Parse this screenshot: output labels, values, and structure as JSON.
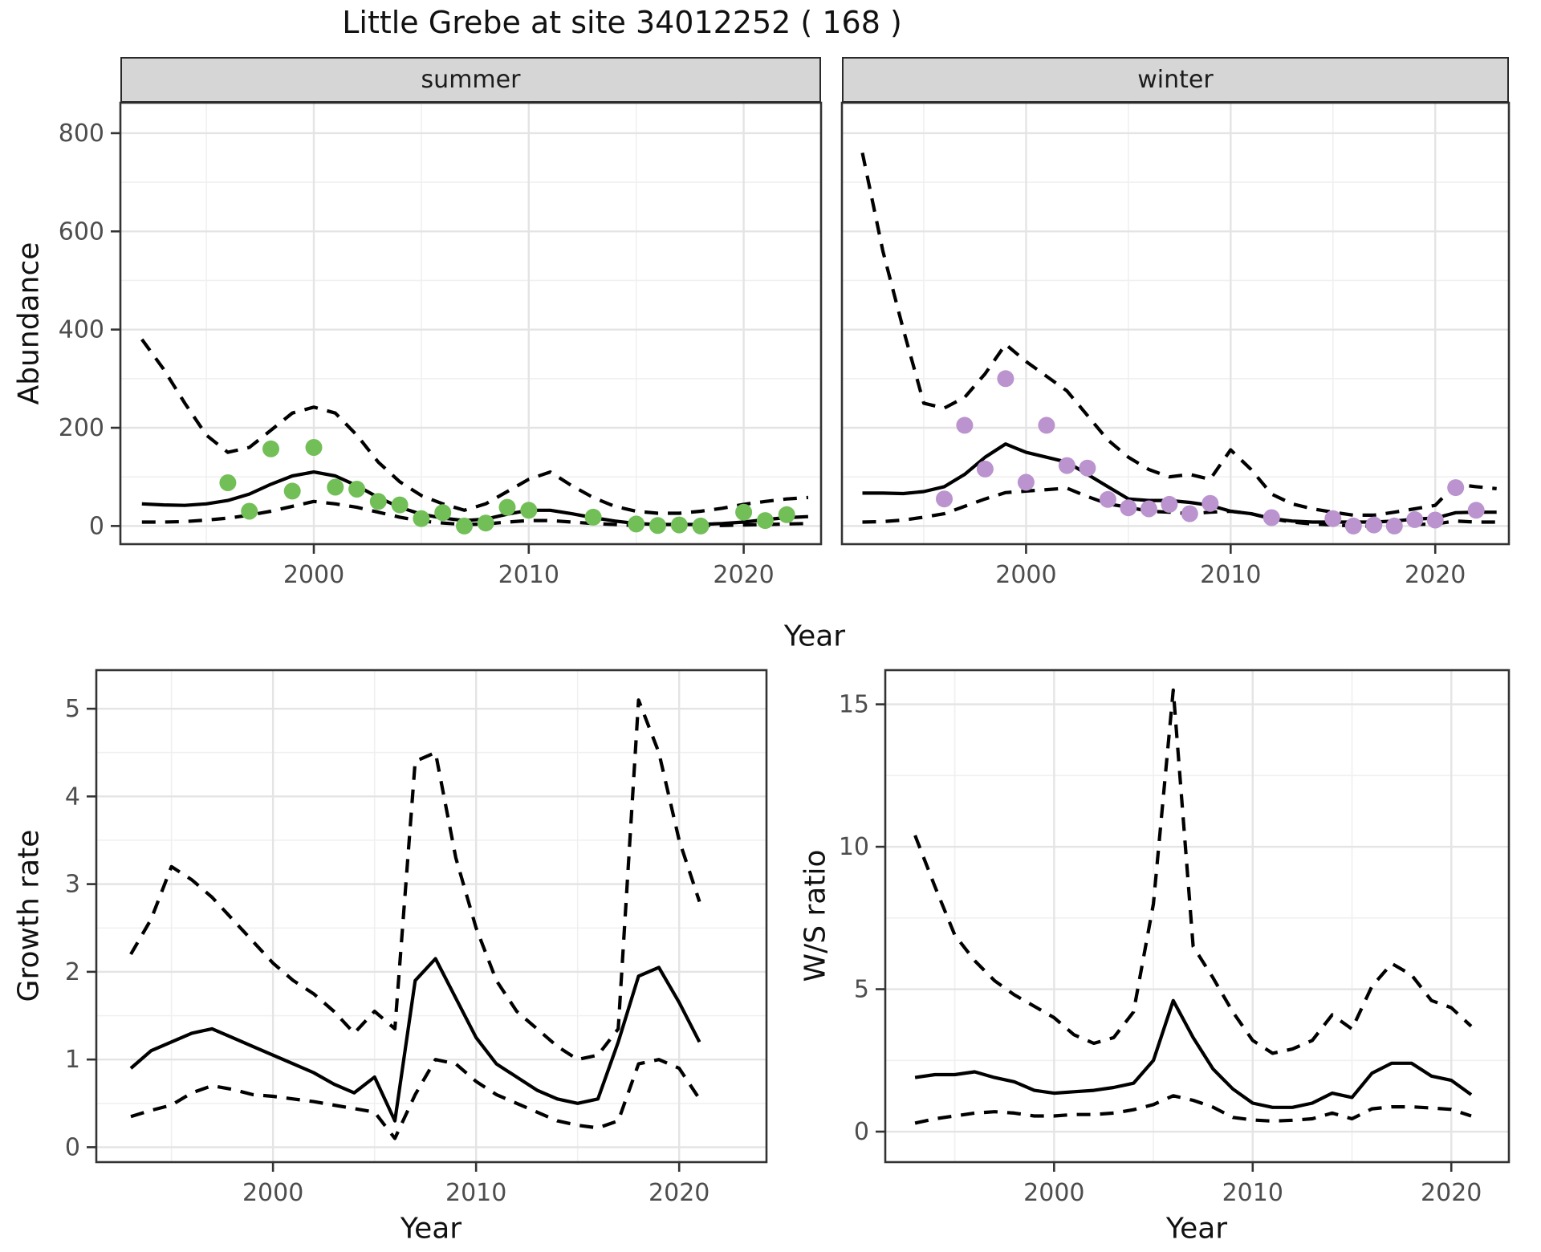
{
  "title": "Little Grebe at site 34012252 ( 168 )",
  "facets": {
    "summer": "summer",
    "winter": "winter"
  },
  "axis_titles": {
    "abundance": "Abundance",
    "year": "Year",
    "growth_rate": "Growth rate",
    "ws_ratio": "W/S ratio"
  },
  "colors": {
    "summer_point": "#72bf58",
    "winter_point": "#bb93ce",
    "line": "#000000",
    "grid_major": "#e4e4e4",
    "grid_minor": "#f0f0f0",
    "panel_border": "#333333",
    "tick_text": "#4d4d4d",
    "strip_bg": "#d6d6d6"
  },
  "chart_data": [
    {
      "id": "summer",
      "type": "line",
      "facet": "summer",
      "xlabel": "Year",
      "ylabel": "Abundance",
      "xlim": [
        1991,
        2023.6
      ],
      "ylim": [
        -37,
        862
      ],
      "x_ticks": [
        2000,
        2010,
        2020
      ],
      "x_minor": [
        1995,
        2005,
        2015
      ],
      "y_ticks": [
        0,
        200,
        400,
        600,
        800
      ],
      "y_minor": [
        100,
        300,
        500,
        700
      ],
      "show_y_labels": true,
      "x": [
        1992,
        1993,
        1994,
        1995,
        1996,
        1997,
        1998,
        1999,
        2000,
        2001,
        2002,
        2003,
        2004,
        2005,
        2006,
        2007,
        2008,
        2009,
        2010,
        2011,
        2012,
        2013,
        2014,
        2015,
        2016,
        2017,
        2018,
        2019,
        2020,
        2021,
        2022,
        2023
      ],
      "series": [
        {
          "name": "fit",
          "style": "solid",
          "values": [
            45,
            43,
            42,
            45,
            52,
            65,
            85,
            102,
            110,
            102,
            82,
            58,
            38,
            24,
            16,
            11,
            14,
            24,
            32,
            32,
            25,
            17,
            10,
            5,
            3,
            3,
            3,
            5,
            8,
            13,
            17,
            19
          ]
        },
        {
          "name": "upper_ci",
          "style": "dashed",
          "values": [
            380,
            320,
            250,
            185,
            150,
            160,
            195,
            230,
            242,
            230,
            185,
            130,
            90,
            62,
            45,
            32,
            45,
            70,
            95,
            110,
            82,
            58,
            40,
            30,
            26,
            26,
            30,
            36,
            44,
            50,
            55,
            58
          ]
        },
        {
          "name": "lower_ci",
          "style": "dashed",
          "values": [
            8,
            8,
            9,
            12,
            16,
            22,
            30,
            40,
            50,
            45,
            38,
            28,
            18,
            10,
            6,
            3,
            4,
            8,
            11,
            11,
            8,
            5,
            3,
            1,
            0,
            0,
            1,
            1,
            2,
            3,
            4,
            5
          ]
        }
      ],
      "points": {
        "name": "observed_counts",
        "color_key": "summer_point",
        "years": [
          1996,
          1997,
          1998,
          1999,
          2000,
          2001,
          2002,
          2003,
          2004,
          2005,
          2006,
          2007,
          2008,
          2009,
          2010,
          2013,
          2015,
          2016,
          2017,
          2018,
          2020,
          2021,
          2022
        ],
        "values": [
          88,
          30,
          157,
          71,
          160,
          79,
          75,
          50,
          43,
          15,
          27,
          0,
          6,
          38,
          32,
          18,
          4,
          1,
          2,
          0,
          28,
          11,
          23
        ]
      }
    },
    {
      "id": "winter",
      "type": "line",
      "facet": "winter",
      "xlabel": "Year",
      "ylabel": "Abundance",
      "xlim": [
        1991,
        2023.6
      ],
      "ylim": [
        -37,
        862
      ],
      "x_ticks": [
        2000,
        2010,
        2020
      ],
      "x_minor": [
        1995,
        2005,
        2015
      ],
      "y_ticks": [
        0,
        200,
        400,
        600,
        800
      ],
      "y_minor": [
        100,
        300,
        500,
        700
      ],
      "show_y_labels": false,
      "x": [
        1992,
        1993,
        1994,
        1995,
        1996,
        1997,
        1998,
        1999,
        2000,
        2001,
        2002,
        2003,
        2004,
        2005,
        2006,
        2007,
        2008,
        2009,
        2010,
        2011,
        2012,
        2013,
        2014,
        2015,
        2016,
        2017,
        2018,
        2019,
        2020,
        2021,
        2022,
        2023
      ],
      "series": [
        {
          "name": "fit",
          "style": "solid",
          "values": [
            67,
            67,
            66,
            70,
            80,
            105,
            140,
            167,
            150,
            140,
            130,
            105,
            80,
            55,
            52,
            52,
            48,
            42,
            30,
            25,
            15,
            10,
            8,
            8,
            8,
            8,
            10,
            14,
            16,
            27,
            28,
            28
          ]
        },
        {
          "name": "upper_ci",
          "style": "dashed",
          "values": [
            760,
            560,
            400,
            250,
            240,
            262,
            310,
            370,
            335,
            305,
            275,
            225,
            175,
            140,
            115,
            100,
            105,
            95,
            155,
            115,
            65,
            45,
            35,
            28,
            22,
            22,
            28,
            35,
            42,
            85,
            80,
            76
          ]
        },
        {
          "name": "lower_ci",
          "style": "dashed",
          "values": [
            8,
            9,
            12,
            18,
            25,
            40,
            55,
            68,
            71,
            74,
            77,
            60,
            45,
            38,
            30,
            28,
            25,
            28,
            30,
            25,
            15,
            8,
            4,
            2,
            0,
            0,
            1,
            3,
            4,
            10,
            8,
            8
          ]
        }
      ],
      "points": {
        "name": "observed_counts",
        "color_key": "winter_point",
        "years": [
          1996,
          1997,
          1998,
          1999,
          2000,
          2001,
          2002,
          2003,
          2004,
          2005,
          2006,
          2007,
          2008,
          2009,
          2012,
          2015,
          2016,
          2017,
          2018,
          2019,
          2020,
          2021,
          2022
        ],
        "values": [
          55,
          205,
          116,
          300,
          89,
          205,
          123,
          118,
          54,
          37,
          35,
          44,
          25,
          46,
          17,
          15,
          0,
          2,
          0,
          13,
          12,
          78,
          32
        ]
      }
    },
    {
      "id": "growth",
      "type": "line",
      "xlabel": "Year",
      "ylabel": "Growth rate",
      "xlim": [
        1991.3,
        2024.3
      ],
      "ylim": [
        -0.17,
        5.44
      ],
      "x_ticks": [
        2000,
        2010,
        2020
      ],
      "x_minor": [
        1995,
        2005,
        2015
      ],
      "y_ticks": [
        0,
        1,
        2,
        3,
        4,
        5
      ],
      "y_minor": [
        0.5,
        1.5,
        2.5,
        3.5,
        4.5
      ],
      "show_y_labels": true,
      "x": [
        1993,
        1994,
        1995,
        1996,
        1997,
        1998,
        1999,
        2000,
        2001,
        2002,
        2003,
        2004,
        2005,
        2006,
        2007,
        2008,
        2009,
        2010,
        2011,
        2012,
        2013,
        2014,
        2015,
        2016,
        2017,
        2018,
        2019,
        2020,
        2021
      ],
      "series": [
        {
          "name": "fit",
          "style": "solid",
          "values": [
            0.9,
            1.1,
            1.2,
            1.3,
            1.35,
            1.25,
            1.15,
            1.05,
            0.95,
            0.85,
            0.72,
            0.62,
            0.8,
            0.3,
            1.9,
            2.15,
            1.7,
            1.25,
            0.95,
            0.8,
            0.65,
            0.55,
            0.5,
            0.55,
            1.2,
            1.95,
            2.05,
            1.65,
            1.2
          ]
        },
        {
          "name": "upper_ci",
          "style": "dashed",
          "values": [
            2.2,
            2.6,
            3.2,
            3.05,
            2.85,
            2.6,
            2.35,
            2.1,
            1.9,
            1.75,
            1.55,
            1.3,
            1.55,
            1.35,
            4.4,
            4.5,
            3.3,
            2.5,
            1.9,
            1.55,
            1.35,
            1.15,
            1.0,
            1.05,
            1.35,
            5.1,
            4.5,
            3.5,
            2.8
          ]
        },
        {
          "name": "lower_ci",
          "style": "dashed",
          "values": [
            0.35,
            0.42,
            0.48,
            0.62,
            0.7,
            0.66,
            0.6,
            0.58,
            0.55,
            0.52,
            0.48,
            0.44,
            0.4,
            0.1,
            0.6,
            1.0,
            0.95,
            0.75,
            0.6,
            0.5,
            0.4,
            0.3,
            0.25,
            0.22,
            0.3,
            0.95,
            1.0,
            0.9,
            0.55
          ]
        }
      ]
    },
    {
      "id": "ws",
      "type": "line",
      "xlabel": "Year",
      "ylabel": "W/S ratio",
      "xlim": [
        1991.5,
        2022.9
      ],
      "ylim": [
        -1.07,
        16.2
      ],
      "x_ticks": [
        2000,
        2010,
        2020
      ],
      "x_minor": [
        1995,
        2005,
        2015
      ],
      "y_ticks": [
        0,
        5,
        10,
        15
      ],
      "y_minor": [
        2.5,
        7.5,
        12.5
      ],
      "show_y_labels": true,
      "x": [
        1993,
        1994,
        1995,
        1996,
        1997,
        1998,
        1999,
        2000,
        2001,
        2002,
        2003,
        2004,
        2005,
        2006,
        2007,
        2008,
        2009,
        2010,
        2011,
        2012,
        2013,
        2014,
        2015,
        2016,
        2017,
        2018,
        2019,
        2020,
        2021
      ],
      "series": [
        {
          "name": "fit",
          "style": "solid",
          "values": [
            1.9,
            2.0,
            2.0,
            2.1,
            1.9,
            1.75,
            1.45,
            1.35,
            1.4,
            1.45,
            1.55,
            1.7,
            2.5,
            4.6,
            3.3,
            2.2,
            1.5,
            1.0,
            0.85,
            0.85,
            1.0,
            1.35,
            1.2,
            2.05,
            2.4,
            2.4,
            1.95,
            1.8,
            1.3
          ]
        },
        {
          "name": "upper_ci",
          "style": "dashed",
          "values": [
            10.4,
            8.6,
            6.9,
            6.0,
            5.3,
            4.8,
            4.4,
            4.0,
            3.4,
            3.1,
            3.3,
            4.2,
            8.0,
            15.5,
            6.5,
            5.4,
            4.2,
            3.2,
            2.75,
            2.9,
            3.2,
            4.1,
            3.6,
            5.1,
            5.9,
            5.5,
            4.6,
            4.35,
            3.7
          ]
        },
        {
          "name": "lower_ci",
          "style": "dashed",
          "values": [
            0.3,
            0.45,
            0.55,
            0.65,
            0.7,
            0.65,
            0.55,
            0.55,
            0.6,
            0.6,
            0.65,
            0.77,
            0.95,
            1.26,
            1.1,
            0.86,
            0.5,
            0.41,
            0.37,
            0.4,
            0.45,
            0.65,
            0.45,
            0.8,
            0.87,
            0.87,
            0.83,
            0.78,
            0.55
          ]
        }
      ]
    }
  ]
}
